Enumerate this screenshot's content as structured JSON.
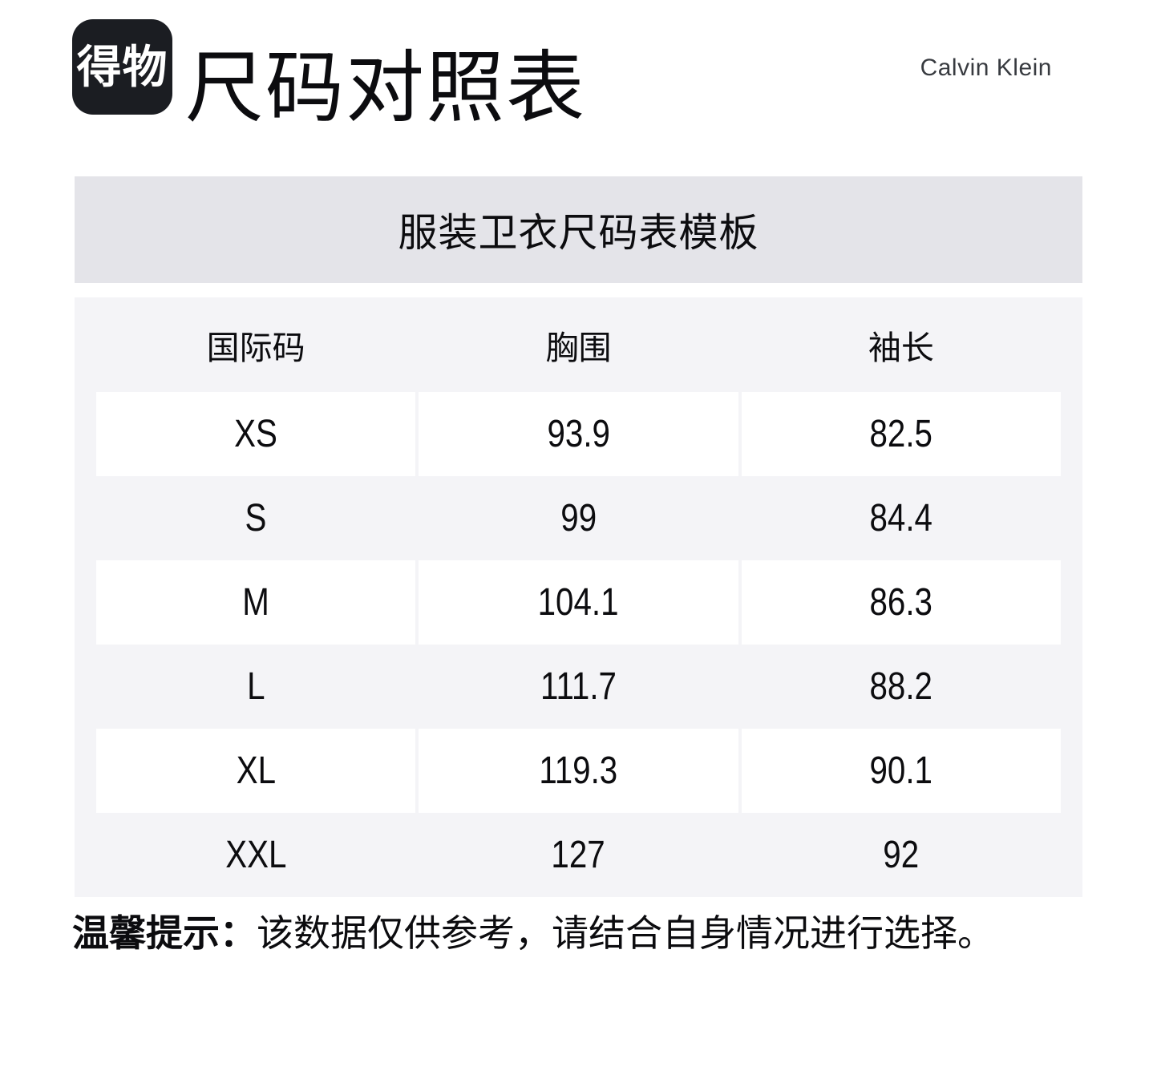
{
  "page": {
    "logo_text": "得物",
    "title": "尺码对照表",
    "brand_name": "Calvin Klein"
  },
  "banner": {
    "title": "服装卫衣尺码表模板"
  },
  "table": {
    "headers": [
      "国际码",
      "胸围",
      "袖长"
    ],
    "rows": [
      {
        "size": "XS",
        "chest": "93.9",
        "sleeve": "82.5"
      },
      {
        "size": "S",
        "chest": "99",
        "sleeve": "84.4"
      },
      {
        "size": "M",
        "chest": "104.1",
        "sleeve": "86.3"
      },
      {
        "size": "L",
        "chest": "111.7",
        "sleeve": "88.2"
      },
      {
        "size": "XL",
        "chest": "119.3",
        "sleeve": "90.1"
      },
      {
        "size": "XXL",
        "chest": "127",
        "sleeve": "92"
      }
    ]
  },
  "tip": {
    "label": "温馨提示：",
    "text": "该数据仅供参考，请结合自身情况进行选择。"
  },
  "colors": {
    "banner_bg": "#e4e4e9",
    "table_bg": "#f4f4f7",
    "row_white_bg": "#ffffff",
    "logo_bg": "#1b1d22",
    "text": "#0c0c0f",
    "brand_text": "#383b40"
  }
}
